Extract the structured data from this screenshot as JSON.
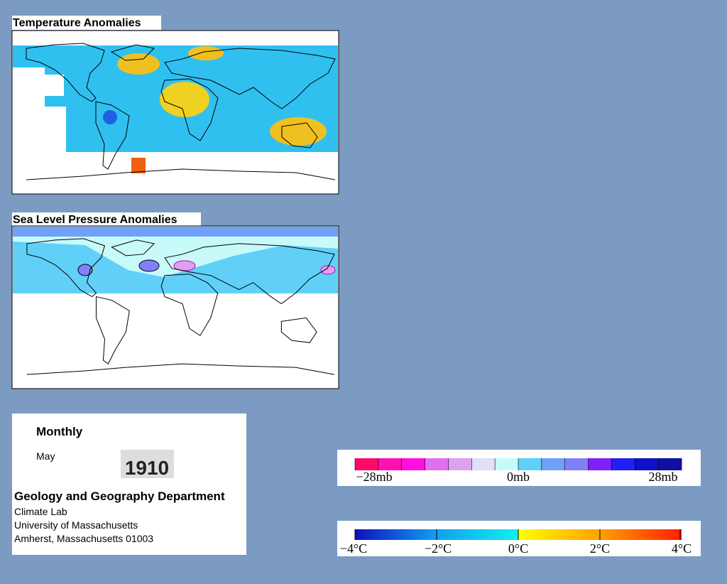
{
  "temperature_map": {
    "title": "Temperature Anomalies"
  },
  "pressure_map": {
    "title": "Sea Level Pressure Anomalies"
  },
  "info": {
    "period": "Monthly",
    "month": "May",
    "year": "1910",
    "department": "Geology and Geography Department",
    "lines": [
      "Climate Lab",
      "University of Massachusetts",
      "Amherst, Massachusetts 01003"
    ]
  },
  "pressure_legend": {
    "labels": [
      "−28mb",
      "0mb",
      "28mb"
    ],
    "colors": [
      "#ff0a64",
      "#ff10b0",
      "#ff10e0",
      "#e070f0",
      "#e0a0f0",
      "#e0e0f8",
      "#c8fafa",
      "#60d0f8",
      "#70a0f8",
      "#8080f8",
      "#8020f8",
      "#2020f0",
      "#1010c8",
      "#1010a0"
    ]
  },
  "temperature_legend": {
    "labels": [
      "−4°C",
      "−2°C",
      "0°C",
      "2°C",
      "4°C"
    ]
  }
}
